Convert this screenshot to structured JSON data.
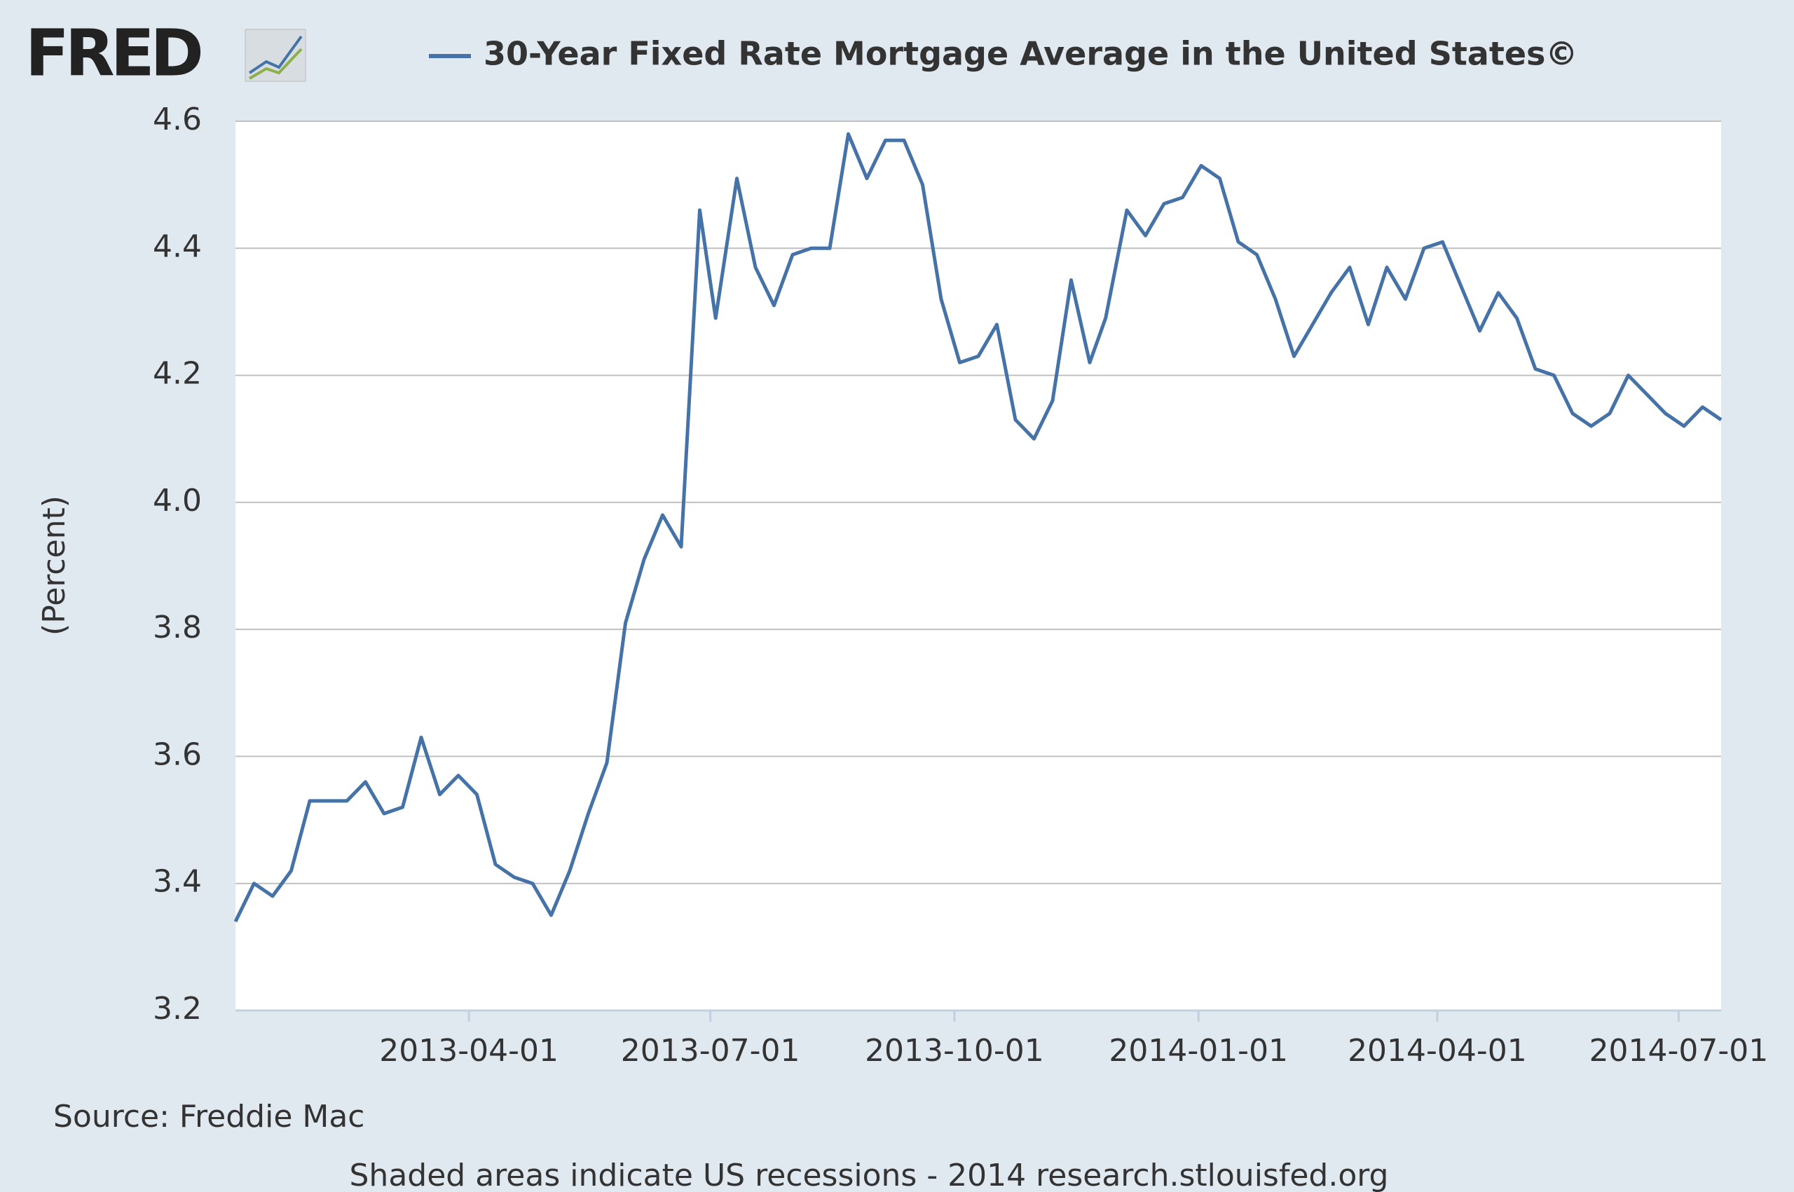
{
  "logo": "FRED",
  "chart_data": {
    "type": "line",
    "y_label": "(Percent)",
    "source": "Source: Freddie Mac",
    "footer": "Shaded areas indicate US recessions - 2014 research.stlouisfed.org",
    "x": [
      "2013-01-03",
      "2013-01-10",
      "2013-01-17",
      "2013-01-24",
      "2013-01-31",
      "2013-02-07",
      "2013-02-14",
      "2013-02-21",
      "2013-02-28",
      "2013-03-07",
      "2013-03-14",
      "2013-03-21",
      "2013-03-28",
      "2013-04-04",
      "2013-04-11",
      "2013-04-18",
      "2013-04-25",
      "2013-05-02",
      "2013-05-09",
      "2013-05-16",
      "2013-05-23",
      "2013-05-30",
      "2013-06-06",
      "2013-06-13",
      "2013-06-20",
      "2013-06-27",
      "2013-07-03",
      "2013-07-11",
      "2013-07-18",
      "2013-07-25",
      "2013-08-01",
      "2013-08-08",
      "2013-08-15",
      "2013-08-22",
      "2013-08-29",
      "2013-09-05",
      "2013-09-12",
      "2013-09-19",
      "2013-09-26",
      "2013-10-03",
      "2013-10-10",
      "2013-10-17",
      "2013-10-24",
      "2013-10-31",
      "2013-11-07",
      "2013-11-14",
      "2013-11-21",
      "2013-11-27",
      "2013-12-05",
      "2013-12-12",
      "2013-12-19",
      "2013-12-26",
      "2014-01-02",
      "2014-01-09",
      "2014-01-16",
      "2014-01-23",
      "2014-01-30",
      "2014-02-06",
      "2014-02-13",
      "2014-02-20",
      "2014-02-27",
      "2014-03-06",
      "2014-03-13",
      "2014-03-20",
      "2014-03-27",
      "2014-04-03",
      "2014-04-10",
      "2014-04-17",
      "2014-04-24",
      "2014-05-01",
      "2014-05-08",
      "2014-05-15",
      "2014-05-22",
      "2014-05-29",
      "2014-06-05",
      "2014-06-12",
      "2014-06-19",
      "2014-06-26",
      "2014-07-03",
      "2014-07-10",
      "2014-07-17"
    ],
    "series": [
      {
        "name": "30-Year Fixed Rate Mortgage Average in the United States©",
        "color": "#4572a7",
        "values": [
          3.34,
          3.4,
          3.38,
          3.42,
          3.53,
          3.53,
          3.53,
          3.56,
          3.51,
          3.52,
          3.63,
          3.54,
          3.57,
          3.54,
          3.43,
          3.41,
          3.4,
          3.35,
          3.42,
          3.51,
          3.59,
          3.81,
          3.91,
          3.98,
          3.93,
          4.46,
          4.29,
          4.51,
          4.37,
          4.31,
          4.39,
          4.4,
          4.4,
          4.58,
          4.51,
          4.57,
          4.57,
          4.5,
          4.32,
          4.22,
          4.23,
          4.28,
          4.13,
          4.1,
          4.16,
          4.35,
          4.22,
          4.29,
          4.46,
          4.42,
          4.47,
          4.48,
          4.53,
          4.51,
          4.41,
          4.39,
          4.32,
          4.23,
          4.28,
          4.33,
          4.37,
          4.28,
          4.37,
          4.32,
          4.4,
          4.41,
          4.34,
          4.27,
          4.33,
          4.29,
          4.21,
          4.2,
          4.14,
          4.12,
          4.14,
          4.2,
          4.17,
          4.14,
          4.12,
          4.15,
          4.13
        ]
      }
    ],
    "xlim": [
      "2013-01-03",
      "2014-07-17"
    ],
    "xticks": [
      "2013-04-01",
      "2013-07-01",
      "2013-10-01",
      "2014-01-01",
      "2014-04-01",
      "2014-07-01"
    ],
    "ylim": [
      3.2,
      4.6
    ],
    "yticks": [
      3.2,
      3.4,
      3.6,
      3.8,
      {
        "value": 4,
        "label": "4.0"
      },
      4.2,
      4.4,
      4.6
    ],
    "grid": true
  }
}
